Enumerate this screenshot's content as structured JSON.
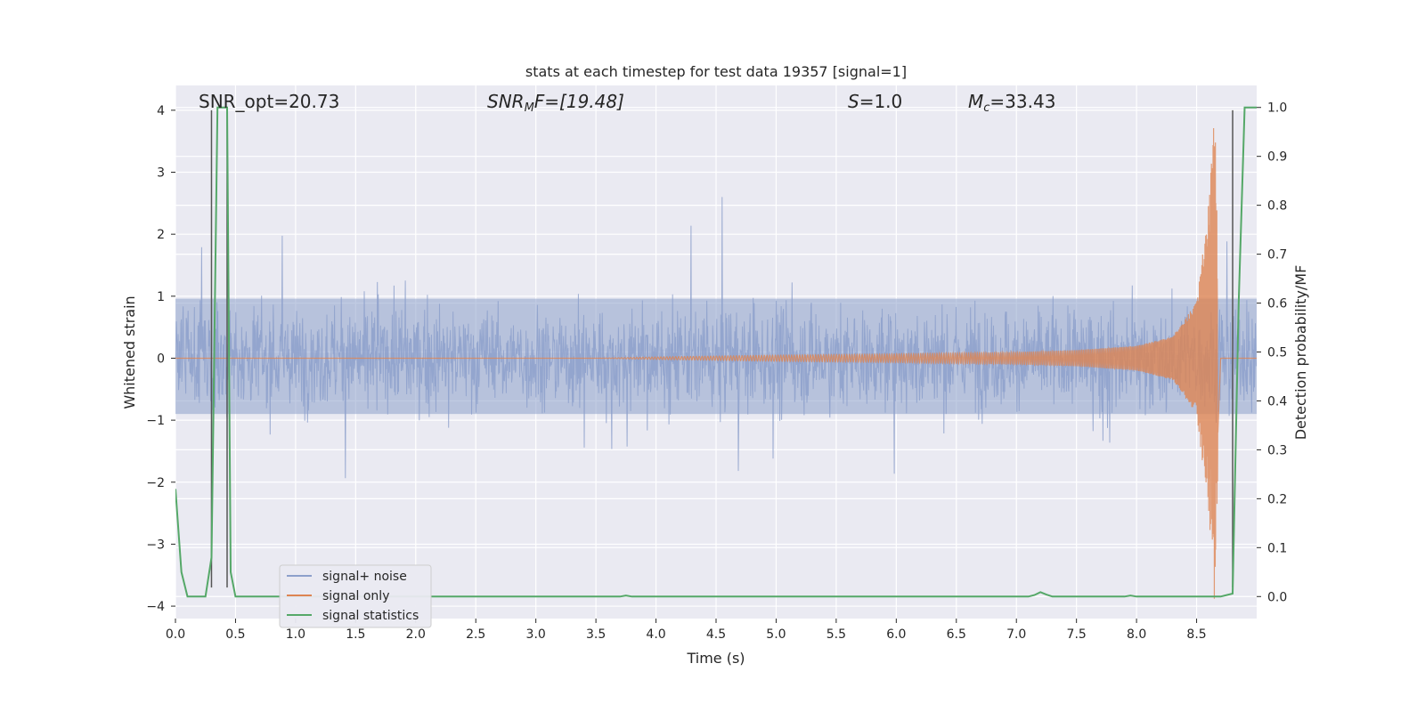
{
  "chart_data": {
    "type": "line",
    "title": "stats at each timestep for test data 19357 [signal=1]",
    "xlabel": "Time (s)",
    "ylabel": "Whitened strain",
    "y2label": "Detection probability/MF",
    "xlim": [
      0.0,
      9.0
    ],
    "ylim": [
      -4.2,
      4.4
    ],
    "y2lim": [
      -0.045,
      1.045
    ],
    "xticks": [
      "0.0",
      "0.5",
      "1.0",
      "1.5",
      "2.0",
      "2.5",
      "3.0",
      "3.5",
      "4.0",
      "4.5",
      "5.0",
      "5.5",
      "6.0",
      "6.5",
      "7.0",
      "7.5",
      "8.0",
      "8.5"
    ],
    "yticks": [
      "4",
      "3",
      "2",
      "1",
      "0",
      "−1",
      "−2",
      "−3",
      "−4"
    ],
    "y2ticks": [
      "1.0",
      "0.9",
      "0.8",
      "0.7",
      "0.6",
      "0.5",
      "0.4",
      "0.3",
      "0.2",
      "0.1",
      "0.0"
    ],
    "grid": true,
    "legend": {
      "position": "lower-left",
      "entries": [
        {
          "label": "signal+ noise",
          "color": "#8da0cb"
        },
        {
          "label": "signal only",
          "color": "#dd8452"
        },
        {
          "label": "signal statistics",
          "color": "#55a868"
        }
      ]
    },
    "annotations": {
      "snr_opt": "SNR_opt=20.73",
      "snr_mf_base": "SNR",
      "snr_mf_sub": "M",
      "snr_mf_rest": "F=[19.48]",
      "s_base": "S",
      "s_rest": "=1.0",
      "mc_base": "M",
      "mc_sub": "c",
      "mc_rest": "=33.43"
    },
    "vertical_markers_x": [
      0.3,
      0.43,
      8.8
    ],
    "noise_series": {
      "name": "signal+ noise",
      "typical_range": [
        -1.5,
        1.6
      ],
      "peak_range": [
        -3.0,
        2.6
      ]
    },
    "signal_series": {
      "name": "signal only",
      "x": [
        0.0,
        3.5,
        4.0,
        5.0,
        6.0,
        7.0,
        7.5,
        8.0,
        8.3,
        8.5,
        8.6,
        8.65,
        8.7,
        9.0
      ],
      "amplitude": [
        0.0,
        0.0,
        0.02,
        0.05,
        0.07,
        0.1,
        0.13,
        0.2,
        0.35,
        0.9,
        2.5,
        4.0,
        0.0,
        0.0
      ]
    },
    "statistics_series": {
      "name": "signal statistics",
      "x": [
        0.0,
        0.05,
        0.1,
        0.2,
        0.25,
        0.3,
        0.35,
        0.38,
        0.43,
        0.46,
        0.5,
        1.0,
        3.7,
        3.75,
        3.8,
        7.1,
        7.15,
        7.2,
        7.25,
        7.3,
        7.9,
        7.95,
        8.0,
        8.7,
        8.75,
        8.8,
        8.85,
        8.9,
        8.95,
        9.0
      ],
      "y": [
        0.22,
        0.05,
        0.0,
        0.0,
        0.0,
        0.08,
        1.0,
        1.0,
        1.0,
        0.05,
        0.0,
        0.0,
        0.0,
        0.002,
        0.0,
        0.0,
        0.003,
        0.009,
        0.004,
        0.0,
        0.0,
        0.002,
        0.0,
        0.0,
        0.003,
        0.006,
        0.6,
        1.0,
        1.0,
        1.0
      ]
    }
  }
}
